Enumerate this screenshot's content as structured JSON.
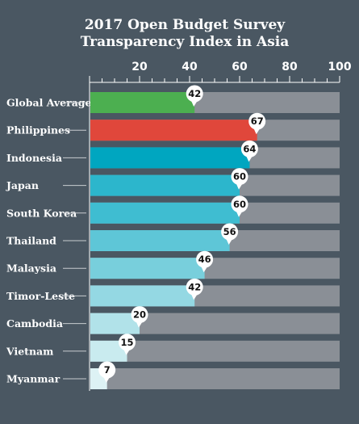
{
  "chart_data": {
    "type": "bar",
    "orientation": "horizontal",
    "title_lines": [
      "2017 Open Budget Survey",
      "Transparency Index in Asia"
    ],
    "categories": [
      "Global Average",
      "Philippines",
      "Indonesia",
      "Japan",
      "South Korea",
      "Thailand",
      "Malaysia",
      "Timor-Leste",
      "Cambodia",
      "Vietnam",
      "Myanmar"
    ],
    "values": [
      42,
      67,
      64,
      60,
      60,
      56,
      46,
      42,
      20,
      15,
      7
    ],
    "bar_colors": [
      "#4caf50",
      "#e0473b",
      "#00a6c0",
      "#2cb6cc",
      "#3fbdd1",
      "#5ec6d7",
      "#78cfdc",
      "#94d8e3",
      "#b1e2e9",
      "#c9ebef",
      "#ddf2f4"
    ],
    "track_color": "#8a8f96",
    "xlim": [
      0,
      100
    ],
    "xticks": [
      20,
      40,
      60,
      80,
      100
    ],
    "tick_position": "top",
    "grid": false,
    "legend": "none"
  }
}
